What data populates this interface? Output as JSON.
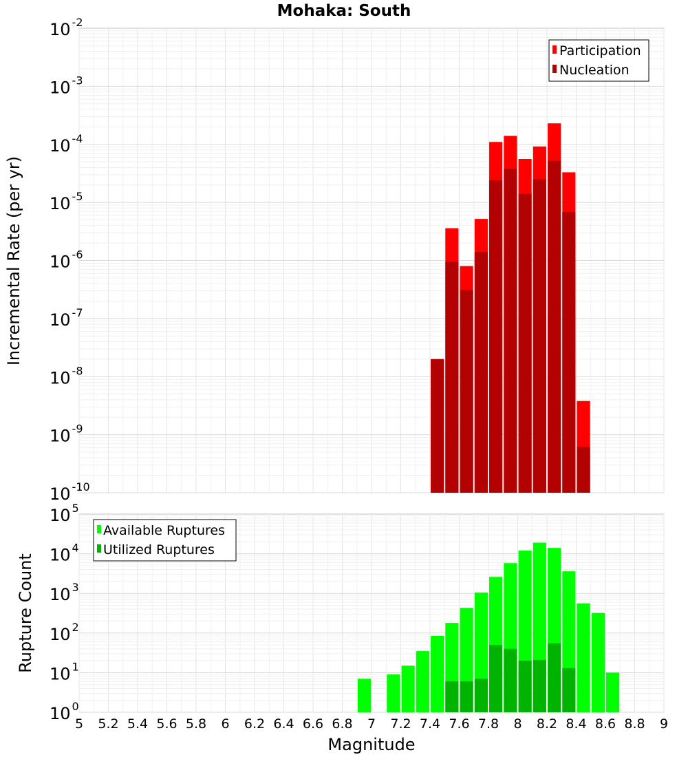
{
  "title": "Mohaka: South",
  "x_axis_label": "Magnitude",
  "chart_data": [
    {
      "type": "bar",
      "panel": "top",
      "ylabel": "Incremental Rate (per yr)",
      "yscale": "log",
      "ylim_exponents": [
        -10,
        -2
      ],
      "legend_position": "top-right",
      "x": [
        7.45,
        7.55,
        7.65,
        7.75,
        7.85,
        7.95,
        8.05,
        8.15,
        8.25,
        8.35,
        8.45
      ],
      "series": [
        {
          "name": "Participation",
          "color": "#ff0000",
          "values": [
            2e-08,
            3.6e-06,
            8e-07,
            5.2e-06,
            0.00011,
            0.00014,
            5.6e-05,
            9.2e-05,
            0.00023,
            3.3e-05,
            3.8e-09
          ]
        },
        {
          "name": "Nucleation",
          "color": "#b30000",
          "values": [
            2e-08,
            9.5e-07,
            3.1e-07,
            1.4e-06,
            2.4e-05,
            3.8e-05,
            1.4e-05,
            2.5e-05,
            5.2e-05,
            6.8e-06,
            6.2e-10
          ]
        }
      ]
    },
    {
      "type": "bar",
      "panel": "bottom",
      "ylabel": "Rupture Count",
      "yscale": "log",
      "ylim_exponents": [
        0,
        5
      ],
      "legend_position": "top-left",
      "x": [
        6.95,
        7.15,
        7.25,
        7.35,
        7.45,
        7.55,
        7.65,
        7.75,
        7.85,
        7.95,
        8.05,
        8.15,
        8.25,
        8.35,
        8.45,
        8.55,
        8.65
      ],
      "series": [
        {
          "name": "Available Ruptures",
          "color": "#00ff00",
          "values": [
            7,
            9,
            15,
            35,
            85,
            180,
            430,
            1050,
            2600,
            5800,
            12000,
            19000,
            14000,
            3600,
            560,
            320,
            10
          ]
        },
        {
          "name": "Utilized Ruptures",
          "color": "#00b300",
          "values": [
            0,
            0,
            0,
            0,
            1,
            6,
            6,
            7,
            50,
            40,
            20,
            21,
            55,
            13,
            1,
            0,
            0
          ]
        }
      ]
    }
  ],
  "x_ticks": [
    "5",
    "5.2",
    "5.4",
    "5.6",
    "5.8",
    "6",
    "6.2",
    "6.4",
    "6.6",
    "6.8",
    "7",
    "7.2",
    "7.4",
    "7.6",
    "7.8",
    "8",
    "8.2",
    "8.4",
    "8.6",
    "8.8",
    "9"
  ],
  "x_range": [
    5,
    9
  ],
  "bar_width": 0.09
}
